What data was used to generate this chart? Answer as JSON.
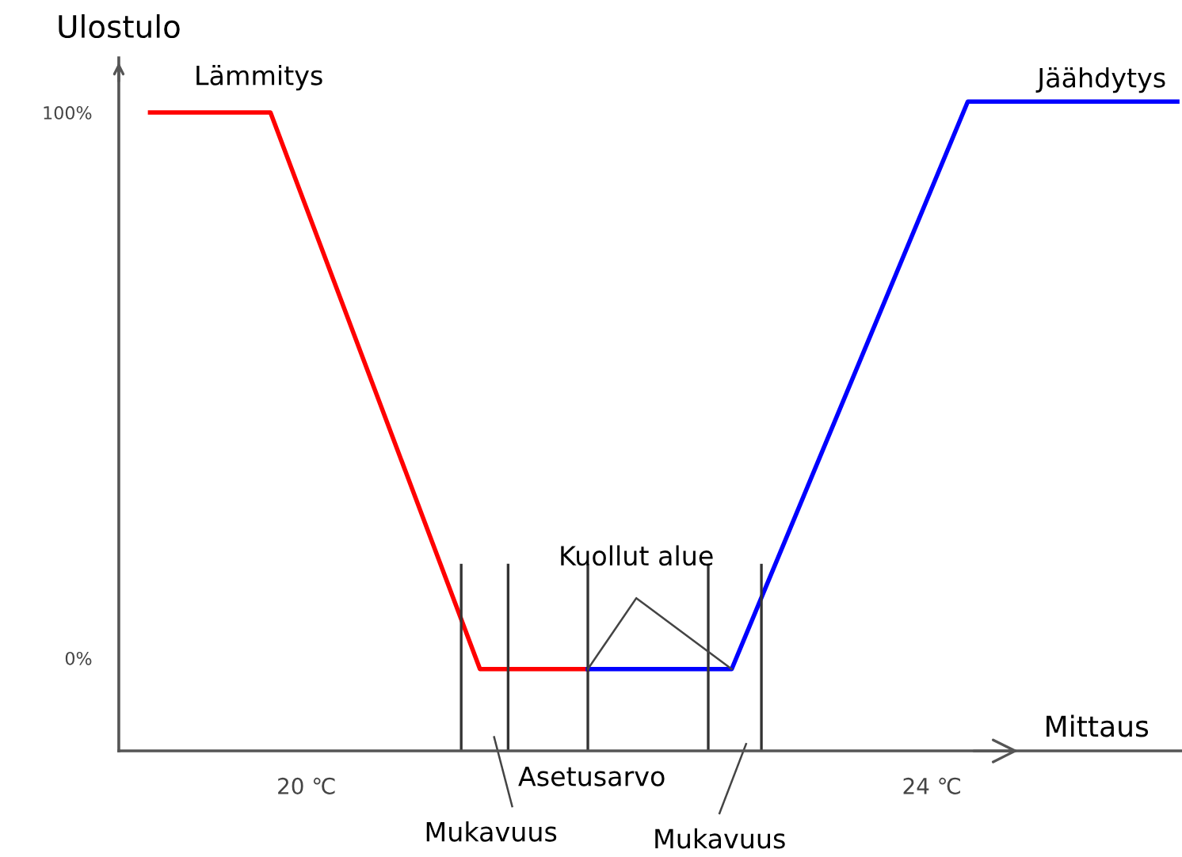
{
  "chart_data": {
    "type": "line",
    "xlabel": "Mittaus",
    "ylabel": "Ulostulo",
    "series": [
      {
        "name": "Lämmitys",
        "color": "#ff0000",
        "x": [
          19.0,
          19.77,
          21.11,
          21.8
        ],
        "values": [
          100,
          100,
          -2,
          -2
        ]
      },
      {
        "name": "Jäähdytys",
        "color": "#0000ff",
        "x": [
          21.8,
          22.72,
          24.23,
          25.57
        ],
        "values": [
          -2,
          -2,
          102,
          102
        ]
      }
    ],
    "xlim": [
      18.8,
      25.6
    ],
    "ylim": [
      -17,
      110
    ],
    "xticks": [
      {
        "value": 20,
        "label": "20 ℃"
      },
      {
        "value": 24,
        "label": "24 ℃"
      }
    ],
    "yticks": [
      {
        "value": 0,
        "label": "0%"
      },
      {
        "value": 100,
        "label": "100%"
      }
    ],
    "ref_lines": [
      {
        "axis": "x",
        "value": 20.99,
        "color": "#333333"
      },
      {
        "axis": "x",
        "value": 21.29,
        "color": "#333333"
      },
      {
        "axis": "x",
        "value": 21.8,
        "color": "#333333"
      },
      {
        "axis": "x",
        "value": 22.57,
        "color": "#333333"
      },
      {
        "axis": "x",
        "value": 22.91,
        "color": "#333333"
      }
    ],
    "annotations": [
      "Kuollut alue",
      "Asetusarvo",
      "Mukavuus",
      "Mukavuus"
    ],
    "grid": false,
    "legend": false,
    "marker": "none",
    "line_style": "solid"
  }
}
